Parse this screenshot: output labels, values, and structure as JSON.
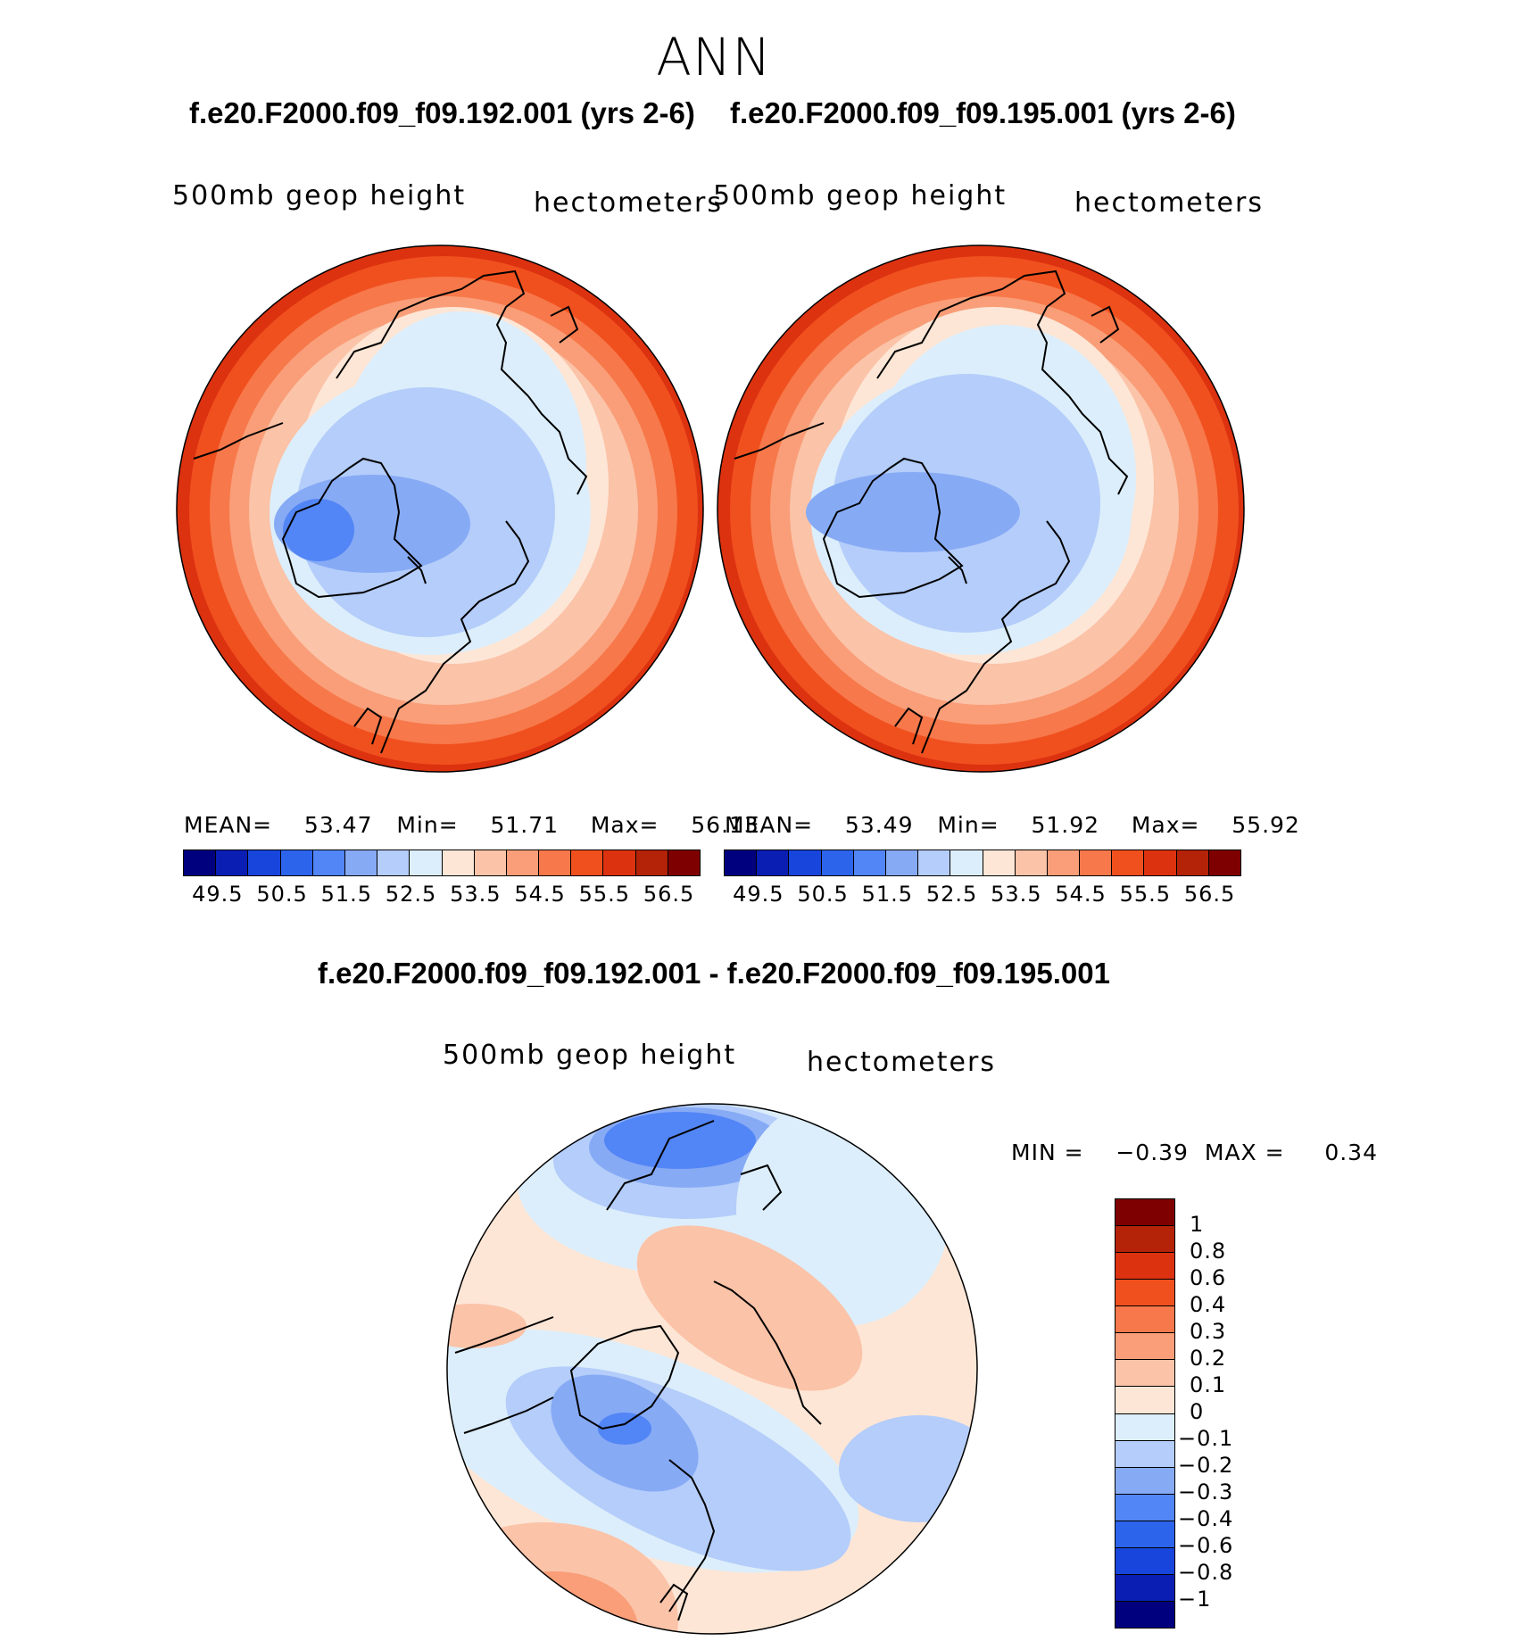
{
  "title": "ANN",
  "panels": [
    {
      "case_title": "f.e20.F2000.f09_f09.192.001 (yrs 2-6)",
      "variable": "500mb geop height",
      "units": "hectometers",
      "stats": {
        "mean_label": "MEAN=",
        "mean": "53.47",
        "min_label": "Min=",
        "min": "51.71",
        "max_label": "Max=",
        "max": "56.13"
      }
    },
    {
      "case_title": "f.e20.F2000.f09_f09.195.001 (yrs 2-6)",
      "variable": "500mb geop height",
      "units": "hectometers",
      "stats": {
        "mean_label": "MEAN=",
        "mean": "53.49",
        "min_label": "Min=",
        "min": "51.92",
        "max_label": "Max=",
        "max": "55.92"
      }
    }
  ],
  "colorbar_levels": [
    "49.5",
    "50.5",
    "51.5",
    "52.5",
    "53.5",
    "54.5",
    "55.5",
    "56.5"
  ],
  "colorbar_colors": [
    "#00007f",
    "#0a1eb4",
    "#1845dc",
    "#2d64ec",
    "#5285f5",
    "#87aaf5",
    "#b4cdfa",
    "#dceefb",
    "#fde6d6",
    "#fbc3a8",
    "#f99e78",
    "#f7784a",
    "#f0501e",
    "#dc3210",
    "#b42307",
    "#7f0000"
  ],
  "difference": {
    "title": "f.e20.F2000.f09_f09.192.001 - f.e20.F2000.f09_f09.195.001",
    "variable": "500mb geop height",
    "units": "hectometers",
    "min_label": "MIN =",
    "min": "−0.39",
    "max_label": "MAX =",
    "max": "0.34",
    "levels": [
      "1",
      "0.8",
      "0.6",
      "0.4",
      "0.3",
      "0.2",
      "0.1",
      "0",
      "−0.1",
      "−0.2",
      "−0.3",
      "−0.4",
      "−0.6",
      "−0.8",
      "−1"
    ],
    "colors": [
      "#7f0000",
      "#b42307",
      "#dc3210",
      "#f0501e",
      "#f7784a",
      "#f99e78",
      "#fbc3a8",
      "#fde6d6",
      "#dceefb",
      "#b4cdfa",
      "#87aaf5",
      "#5285f5",
      "#2d64ec",
      "#1845dc",
      "#0a1eb4",
      "#00007f"
    ]
  }
}
